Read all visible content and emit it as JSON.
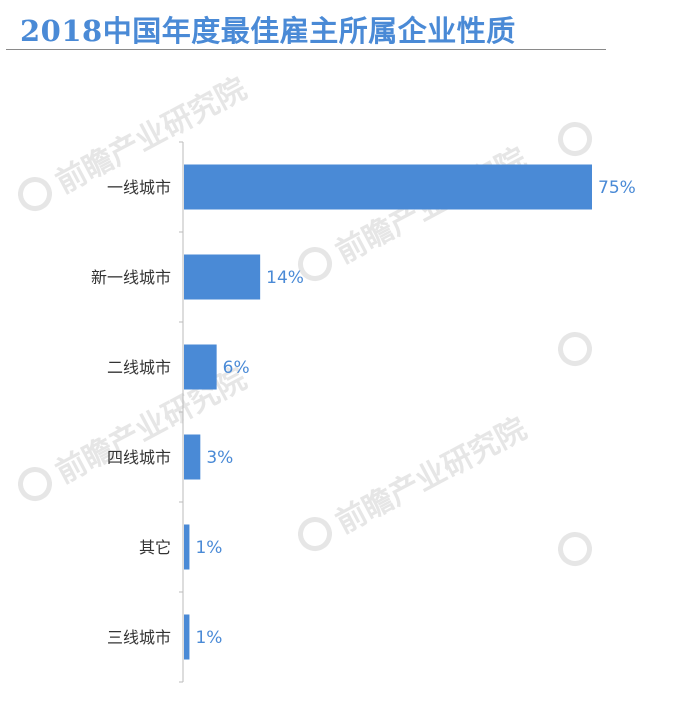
{
  "title": "2018中国年度最佳雇主所属企业性质",
  "watermark": "前瞻产业研究院",
  "colors": {
    "accent": "#4a8ad6",
    "bar": "#4a8ad6",
    "label_text": "#333333",
    "axis": "#bbbbbb"
  },
  "chart_data": {
    "type": "bar",
    "orientation": "horizontal",
    "title": "2018中国年度最佳雇主所属企业性质",
    "categories": [
      "一线城市",
      "新一线城市",
      "二线城市",
      "四线城市",
      "其它",
      "三线城市"
    ],
    "values": [
      75,
      14,
      6,
      3,
      1,
      1
    ],
    "data_labels": [
      "75%",
      "14%",
      "6%",
      "3%",
      "1%",
      "1%"
    ],
    "unit": "%",
    "xlim": [
      0,
      75
    ],
    "grid": false,
    "legend": "none"
  }
}
